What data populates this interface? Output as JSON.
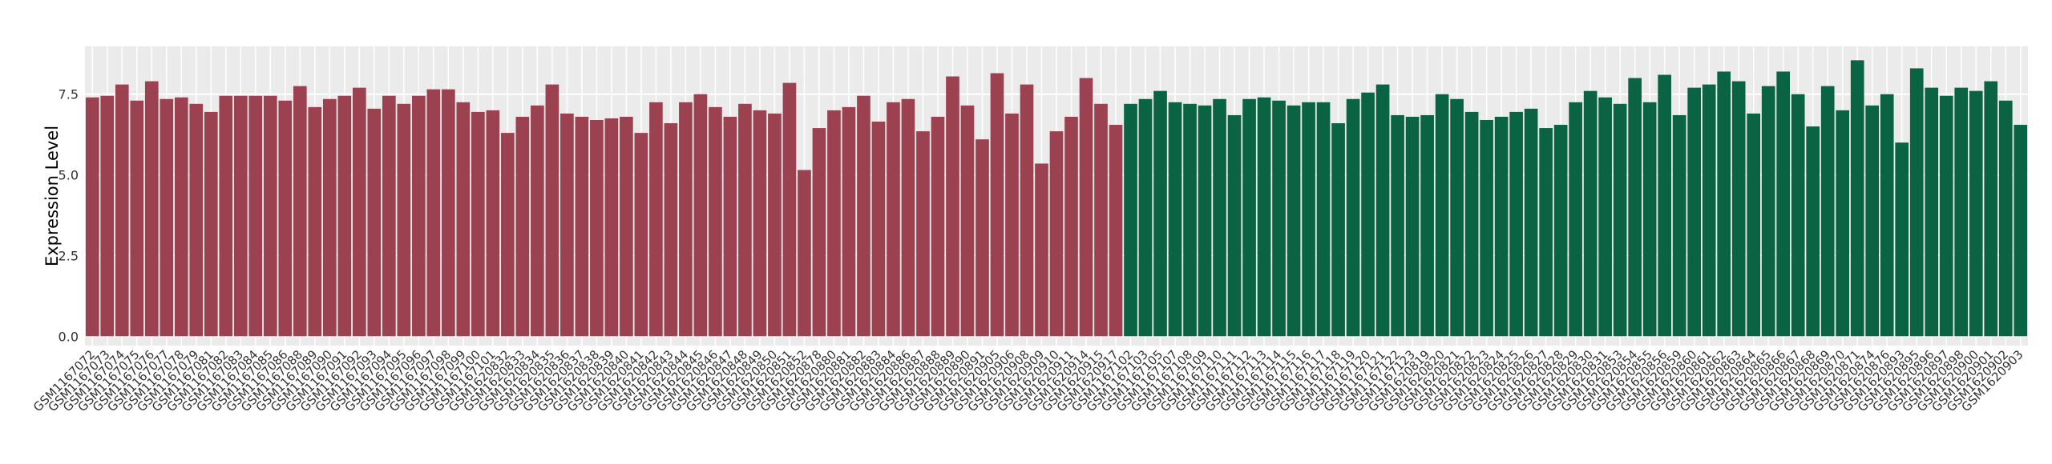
{
  "chart_data": {
    "type": "bar",
    "ylabel": "Expression Level",
    "categories": [
      "GSM1167072",
      "GSM1167073",
      "GSM1167074",
      "GSM1167075",
      "GSM1167076",
      "GSM1167077",
      "GSM1167078",
      "GSM1167079",
      "GSM1167081",
      "GSM1167082",
      "GSM1167083",
      "GSM1167084",
      "GSM1167085",
      "GSM1167086",
      "GSM1167088",
      "GSM1167089",
      "GSM1167090",
      "GSM1167091",
      "GSM1167092",
      "GSM1167093",
      "GSM1167094",
      "GSM1167095",
      "GSM1167096",
      "GSM1167097",
      "GSM1167098",
      "GSM1167099",
      "GSM1167100",
      "GSM1167101",
      "GSM1620832",
      "GSM1620833",
      "GSM1620834",
      "GSM1620835",
      "GSM1620836",
      "GSM1620837",
      "GSM1620838",
      "GSM1620839",
      "GSM1620840",
      "GSM1620841",
      "GSM1620842",
      "GSM1620843",
      "GSM1620844",
      "GSM1620845",
      "GSM1620846",
      "GSM1620847",
      "GSM1620848",
      "GSM1620849",
      "GSM1620850",
      "GSM1620851",
      "GSM1620852",
      "GSM1620878",
      "GSM1620880",
      "GSM1620881",
      "GSM1620882",
      "GSM1620883",
      "GSM1620884",
      "GSM1620886",
      "GSM1620887",
      "GSM1620888",
      "GSM1620889",
      "GSM1620890",
      "GSM1620891",
      "GSM1620905",
      "GSM1620906",
      "GSM1620908",
      "GSM1620909",
      "GSM1620910",
      "GSM1620911",
      "GSM1620914",
      "GSM1620915",
      "GSM1620917",
      "GSM1167102",
      "GSM1167103",
      "GSM1167105",
      "GSM1167107",
      "GSM1167108",
      "GSM1167109",
      "GSM1167110",
      "GSM1167111",
      "GSM1167112",
      "GSM1167113",
      "GSM1167114",
      "GSM1167115",
      "GSM1167116",
      "GSM1167117",
      "GSM1167118",
      "GSM1167119",
      "GSM1167120",
      "GSM1167121",
      "GSM1167122",
      "GSM1167123",
      "GSM1620819",
      "GSM1620820",
      "GSM1620821",
      "GSM1620822",
      "GSM1620823",
      "GSM1620824",
      "GSM1620825",
      "GSM1620826",
      "GSM1620827",
      "GSM1620828",
      "GSM1620829",
      "GSM1620830",
      "GSM1620831",
      "GSM1620853",
      "GSM1620854",
      "GSM1620855",
      "GSM1620856",
      "GSM1620859",
      "GSM1620860",
      "GSM1620861",
      "GSM1620862",
      "GSM1620863",
      "GSM1620864",
      "GSM1620865",
      "GSM1620866",
      "GSM1620867",
      "GSM1620868",
      "GSM1620869",
      "GSM1620870",
      "GSM1620871",
      "GSM1620874",
      "GSM1620876",
      "GSM1620893",
      "GSM1620895",
      "GSM1620896",
      "GSM1620897",
      "GSM1620898",
      "GSM1620900",
      "GSM1620901",
      "GSM1620902",
      "GSM1620903"
    ],
    "values": [
      7.4,
      7.45,
      7.8,
      7.3,
      7.9,
      7.35,
      7.4,
      7.2,
      6.95,
      7.45,
      7.45,
      7.45,
      7.45,
      7.3,
      7.75,
      7.1,
      7.35,
      7.45,
      7.7,
      7.05,
      7.45,
      7.2,
      7.45,
      7.65,
      7.65,
      7.25,
      6.95,
      7.0,
      6.3,
      6.8,
      7.15,
      7.8,
      6.9,
      6.8,
      6.7,
      6.75,
      6.8,
      6.3,
      7.25,
      6.6,
      7.25,
      7.5,
      7.1,
      6.8,
      7.2,
      7.0,
      6.9,
      7.85,
      5.15,
      6.45,
      7.0,
      7.1,
      7.45,
      6.65,
      7.25,
      7.35,
      6.35,
      6.8,
      8.05,
      7.15,
      6.1,
      8.15,
      6.9,
      7.8,
      5.35,
      6.35,
      6.8,
      8.0,
      7.2,
      6.55,
      7.2,
      7.35,
      7.6,
      7.25,
      7.2,
      7.15,
      7.35,
      6.85,
      7.35,
      7.4,
      7.3,
      7.15,
      7.25,
      7.25,
      6.6,
      7.35,
      7.55,
      7.8,
      6.85,
      6.8,
      6.85,
      7.5,
      7.35,
      6.95,
      6.7,
      6.8,
      6.95,
      7.05,
      6.45,
      6.55,
      7.25,
      7.6,
      7.4,
      7.2,
      8.0,
      7.25,
      8.1,
      6.85,
      7.7,
      7.8,
      8.2,
      7.9,
      6.9,
      7.75,
      8.2,
      7.5,
      6.5,
      7.75,
      7.0,
      8.55,
      7.15,
      7.5,
      6.0,
      8.3,
      7.7,
      7.45,
      7.7,
      7.6,
      7.9,
      7.3,
      6.55
    ],
    "colors": [
      "#9b4150",
      "#0a6443"
    ],
    "color_counts": [
      70,
      61
    ],
    "ylim": [
      -0.29,
      8.98
    ],
    "yticks": [
      {
        "value": 0,
        "label": "0.0"
      },
      {
        "value": 2.5,
        "label": "2.5"
      },
      {
        "value": 5,
        "label": "5.0"
      },
      7.5
    ],
    "grid": true
  }
}
